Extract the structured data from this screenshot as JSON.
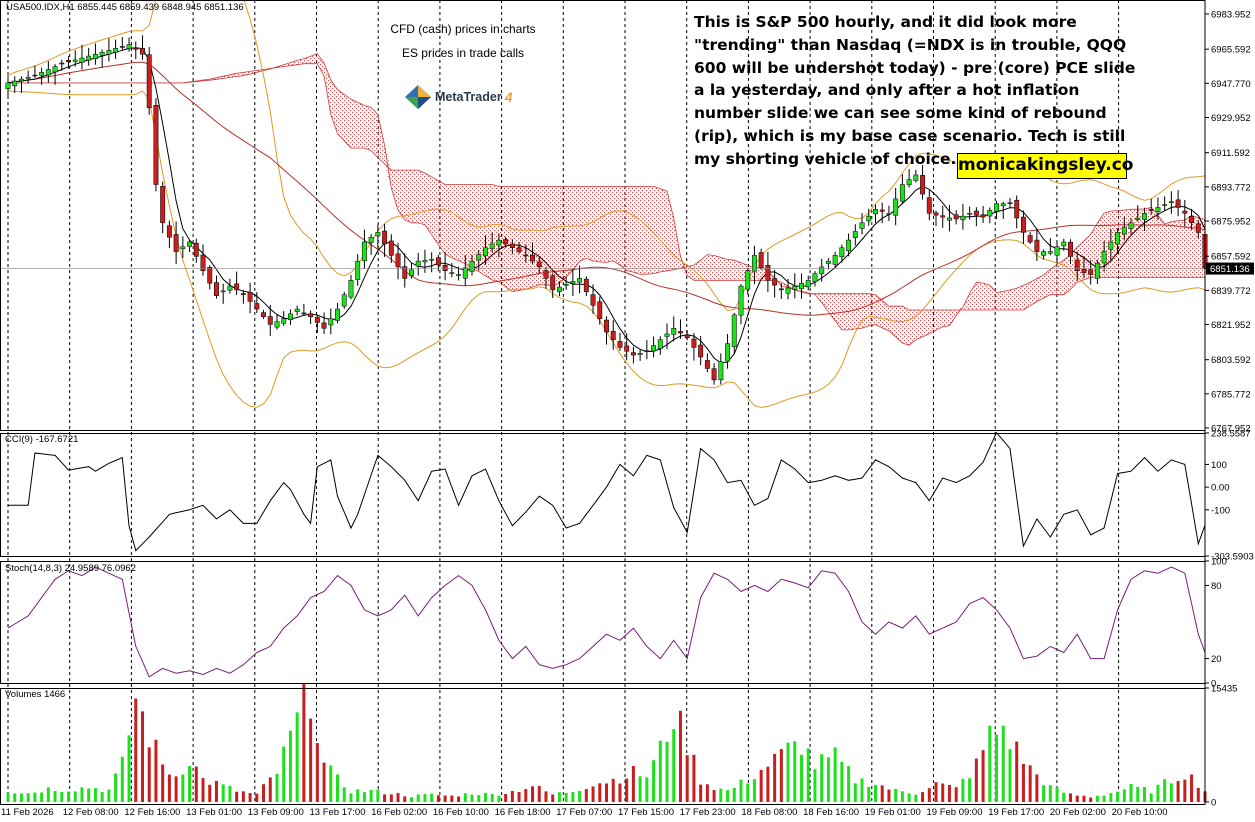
{
  "header": {
    "symbol_line": "USA500.IDX,H1  6855.445 6859.439 6848.945 6851.136"
  },
  "notes": {
    "line1": "CFD (cash) prices in charts",
    "line2": "ES prices in trade calls",
    "platform_name": "MetaTrader",
    "platform_version": "4"
  },
  "commentary": "This is S&P 500 hourly, and it did look more \"trending\" than Nasdaq (=NDX is in trouble, QQQ 600 will be undershot today) - pre (core) PCE slide a la yesterday, and only after a hot inflation number slide we can see some kind of rebound (rip), which is my base case scenario. Tech is still my shorting vehicle of choice.",
  "brand": "monicakingsley.co",
  "colors": {
    "bull": "#1ee01e",
    "bear": "#c81e1e",
    "ma_fast": "#000000",
    "ma_slow": "#b4322a",
    "bollinger": "#dc9b26",
    "cloud": "#c83c3c",
    "stoch": "#7a1c7a",
    "grid": "#000000"
  },
  "chart_data": [
    {
      "type": "candlestick",
      "title": "USA500.IDX,H1",
      "ohlc_readout": {
        "open": 6855.445,
        "high": 6859.439,
        "low": 6848.945,
        "close": 6851.136
      },
      "current_price_label": "6851.136",
      "yticks": [
        "6983.952",
        "6965.592",
        "6947.770",
        "6929.952",
        "6911.592",
        "6893.772",
        "6875.952",
        "6857.592",
        "6839.772",
        "6821.952",
        "6803.592",
        "6785.772",
        "6767.952"
      ],
      "ylim": [
        6767.952,
        6983.952
      ],
      "x_labels": [
        "11 Feb 2026",
        "12 Feb 08:00",
        "12 Feb 16:00",
        "13 Feb 01:00",
        "13 Feb 09:00",
        "13 Feb 17:00",
        "16 Feb 02:00",
        "16 Feb 10:00",
        "16 Feb 18:00",
        "17 Feb 07:00",
        "17 Feb 15:00",
        "17 Feb 23:00",
        "18 Feb 08:00",
        "18 Feb 16:00",
        "19 Feb 01:00",
        "19 Feb 09:00",
        "19 Feb 17:00",
        "20 Feb 02:00",
        "20 Feb 10:00"
      ],
      "close_path": [
        [
          0,
          6948
        ],
        [
          4,
          6952
        ],
        [
          8,
          6958
        ],
        [
          12,
          6962
        ],
        [
          16,
          6966
        ],
        [
          18,
          6968
        ],
        [
          20,
          6963
        ],
        [
          21,
          6935
        ],
        [
          22,
          6895
        ],
        [
          23,
          6875
        ],
        [
          25,
          6860
        ],
        [
          27,
          6865
        ],
        [
          29,
          6850
        ],
        [
          31,
          6837
        ],
        [
          33,
          6842
        ],
        [
          35,
          6838
        ],
        [
          37,
          6830
        ],
        [
          39,
          6822
        ],
        [
          41,
          6825
        ],
        [
          43,
          6830
        ],
        [
          45,
          6826
        ],
        [
          47,
          6820
        ],
        [
          49,
          6830
        ],
        [
          51,
          6845
        ],
        [
          53,
          6865
        ],
        [
          55,
          6870
        ],
        [
          57,
          6858
        ],
        [
          59,
          6846
        ],
        [
          61,
          6855
        ],
        [
          63,
          6856
        ],
        [
          65,
          6850
        ],
        [
          67,
          6848
        ],
        [
          69,
          6855
        ],
        [
          71,
          6862
        ],
        [
          73,
          6866
        ],
        [
          75,
          6862
        ],
        [
          77,
          6858
        ],
        [
          79,
          6852
        ],
        [
          81,
          6840
        ],
        [
          83,
          6843
        ],
        [
          85,
          6846
        ],
        [
          87,
          6832
        ],
        [
          89,
          6818
        ],
        [
          91,
          6810
        ],
        [
          93,
          6806
        ],
        [
          95,
          6808
        ],
        [
          97,
          6814
        ],
        [
          99,
          6820
        ],
        [
          101,
          6815
        ],
        [
          103,
          6805
        ],
        [
          105,
          6793
        ],
        [
          107,
          6812
        ],
        [
          109,
          6842
        ],
        [
          111,
          6858
        ],
        [
          113,
          6845
        ],
        [
          115,
          6840
        ],
        [
          117,
          6842
        ],
        [
          119,
          6845
        ],
        [
          121,
          6852
        ],
        [
          123,
          6858
        ],
        [
          125,
          6866
        ],
        [
          127,
          6875
        ],
        [
          129,
          6882
        ],
        [
          131,
          6880
        ],
        [
          133,
          6895
        ],
        [
          135,
          6900
        ],
        [
          137,
          6880
        ],
        [
          139,
          6878
        ],
        [
          141,
          6877
        ],
        [
          143,
          6880
        ],
        [
          145,
          6878
        ],
        [
          147,
          6885
        ],
        [
          149,
          6885
        ],
        [
          151,
          6870
        ],
        [
          153,
          6860
        ],
        [
          155,
          6860
        ],
        [
          157,
          6865
        ],
        [
          159,
          6850
        ],
        [
          161,
          6848
        ],
        [
          163,
          6860
        ],
        [
          165,
          6870
        ],
        [
          167,
          6875
        ],
        [
          169,
          6880
        ],
        [
          171,
          6883
        ],
        [
          173,
          6886
        ],
        [
          175,
          6880
        ],
        [
          177,
          6870
        ],
        [
          178,
          6851
        ]
      ],
      "ichimoku_cloud": "shown (red dotted hatch)",
      "moving_averages": [
        "fast MA (black)",
        "slow MA (dark red)"
      ],
      "bollinger_bands": "shown (orange)"
    },
    {
      "type": "line",
      "title": "CCI(9) -167.6721",
      "yticks": [
        "238.5587",
        "100",
        "0.00",
        "-100",
        "-303.5903"
      ],
      "ylim": [
        -303.5903,
        238.5587
      ],
      "path": [
        [
          0,
          -80
        ],
        [
          3,
          -80
        ],
        [
          4,
          150
        ],
        [
          7,
          140
        ],
        [
          9,
          75
        ],
        [
          12,
          90
        ],
        [
          13,
          70
        ],
        [
          15,
          105
        ],
        [
          17,
          130
        ],
        [
          18,
          -170
        ],
        [
          19,
          -280
        ],
        [
          21,
          -220
        ],
        [
          24,
          -120
        ],
        [
          27,
          -100
        ],
        [
          29,
          -80
        ],
        [
          31,
          -140
        ],
        [
          33,
          -100
        ],
        [
          35,
          -160
        ],
        [
          37,
          -160
        ],
        [
          39,
          -60
        ],
        [
          41,
          20
        ],
        [
          42,
          -10
        ],
        [
          44,
          -120
        ],
        [
          45,
          -160
        ],
        [
          46,
          90
        ],
        [
          48,
          120
        ],
        [
          49,
          -40
        ],
        [
          51,
          -180
        ],
        [
          52,
          -120
        ],
        [
          55,
          140
        ],
        [
          57,
          90
        ],
        [
          59,
          30
        ],
        [
          61,
          -60
        ],
        [
          63,
          70
        ],
        [
          65,
          80
        ],
        [
          67,
          -80
        ],
        [
          69,
          50
        ],
        [
          71,
          80
        ],
        [
          73,
          -60
        ],
        [
          75,
          -170
        ],
        [
          77,
          -110
        ],
        [
          79,
          -40
        ],
        [
          81,
          -80
        ],
        [
          83,
          -180
        ],
        [
          85,
          -160
        ],
        [
          87,
          -80
        ],
        [
          89,
          0
        ],
        [
          91,
          100
        ],
        [
          93,
          50
        ],
        [
          95,
          140
        ],
        [
          97,
          120
        ],
        [
          99,
          -90
        ],
        [
          101,
          -200
        ],
        [
          103,
          170
        ],
        [
          105,
          120
        ],
        [
          107,
          20
        ],
        [
          109,
          30
        ],
        [
          111,
          -80
        ],
        [
          113,
          -50
        ],
        [
          115,
          120
        ],
        [
          117,
          80
        ],
        [
          119,
          20
        ],
        [
          121,
          30
        ],
        [
          123,
          50
        ],
        [
          125,
          30
        ],
        [
          127,
          40
        ],
        [
          129,
          120
        ],
        [
          131,
          90
        ],
        [
          133,
          40
        ],
        [
          135,
          20
        ],
        [
          137,
          -60
        ],
        [
          139,
          40
        ],
        [
          141,
          20
        ],
        [
          143,
          50
        ],
        [
          145,
          110
        ],
        [
          147,
          240
        ],
        [
          149,
          170
        ],
        [
          151,
          -260
        ],
        [
          153,
          -140
        ],
        [
          155,
          -220
        ],
        [
          157,
          -120
        ],
        [
          159,
          -100
        ],
        [
          161,
          -210
        ],
        [
          163,
          -180
        ],
        [
          165,
          60
        ],
        [
          167,
          70
        ],
        [
          169,
          130
        ],
        [
          171,
          70
        ],
        [
          173,
          120
        ],
        [
          175,
          100
        ],
        [
          177,
          -250
        ],
        [
          178,
          -168
        ]
      ]
    },
    {
      "type": "line",
      "title": "Stoch(14,8,3) 24.9589 76.0962",
      "yticks": [
        "100",
        "80",
        "20",
        "0"
      ],
      "ylim": [
        0,
        100
      ],
      "path": [
        [
          0,
          45
        ],
        [
          3,
          55
        ],
        [
          5,
          70
        ],
        [
          7,
          85
        ],
        [
          9,
          92
        ],
        [
          11,
          88
        ],
        [
          13,
          95
        ],
        [
          15,
          90
        ],
        [
          17,
          85
        ],
        [
          19,
          30
        ],
        [
          21,
          5
        ],
        [
          23,
          12
        ],
        [
          25,
          8
        ],
        [
          27,
          10
        ],
        [
          29,
          7
        ],
        [
          31,
          12
        ],
        [
          33,
          8
        ],
        [
          35,
          15
        ],
        [
          37,
          25
        ],
        [
          39,
          30
        ],
        [
          41,
          45
        ],
        [
          43,
          55
        ],
        [
          45,
          70
        ],
        [
          47,
          75
        ],
        [
          49,
          88
        ],
        [
          51,
          80
        ],
        [
          53,
          60
        ],
        [
          55,
          55
        ],
        [
          57,
          60
        ],
        [
          59,
          72
        ],
        [
          61,
          55
        ],
        [
          63,
          70
        ],
        [
          65,
          80
        ],
        [
          67,
          88
        ],
        [
          69,
          80
        ],
        [
          71,
          60
        ],
        [
          73,
          35
        ],
        [
          75,
          20
        ],
        [
          77,
          30
        ],
        [
          79,
          15
        ],
        [
          81,
          12
        ],
        [
          83,
          15
        ],
        [
          85,
          20
        ],
        [
          87,
          30
        ],
        [
          89,
          40
        ],
        [
          91,
          35
        ],
        [
          93,
          45
        ],
        [
          95,
          30
        ],
        [
          97,
          20
        ],
        [
          99,
          35
        ],
        [
          101,
          20
        ],
        [
          103,
          70
        ],
        [
          105,
          90
        ],
        [
          107,
          85
        ],
        [
          109,
          75
        ],
        [
          111,
          80
        ],
        [
          113,
          75
        ],
        [
          115,
          85
        ],
        [
          117,
          82
        ],
        [
          119,
          78
        ],
        [
          121,
          92
        ],
        [
          123,
          90
        ],
        [
          125,
          75
        ],
        [
          127,
          50
        ],
        [
          129,
          40
        ],
        [
          131,
          50
        ],
        [
          133,
          45
        ],
        [
          135,
          55
        ],
        [
          137,
          40
        ],
        [
          139,
          45
        ],
        [
          141,
          50
        ],
        [
          143,
          65
        ],
        [
          145,
          70
        ],
        [
          147,
          60
        ],
        [
          149,
          45
        ],
        [
          151,
          20
        ],
        [
          153,
          22
        ],
        [
          155,
          30
        ],
        [
          157,
          25
        ],
        [
          159,
          40
        ],
        [
          161,
          20
        ],
        [
          163,
          20
        ],
        [
          165,
          60
        ],
        [
          167,
          85
        ],
        [
          169,
          92
        ],
        [
          171,
          90
        ],
        [
          173,
          95
        ],
        [
          175,
          90
        ],
        [
          177,
          40
        ],
        [
          178,
          25
        ]
      ]
    },
    {
      "type": "bar",
      "title": "Volumes 1466",
      "yticks": [
        "15435",
        "0"
      ],
      "ylim": [
        0,
        15435
      ],
      "profile": [
        [
          0,
          1500
        ],
        [
          3,
          1200
        ],
        [
          6,
          1800
        ],
        [
          9,
          1700
        ],
        [
          12,
          2000
        ],
        [
          15,
          1600
        ],
        [
          17,
          5000
        ],
        [
          19,
          14000
        ],
        [
          21,
          9000
        ],
        [
          23,
          5000
        ],
        [
          25,
          3500
        ],
        [
          27,
          6000
        ],
        [
          29,
          3000
        ],
        [
          31,
          2500
        ],
        [
          34,
          1500
        ],
        [
          37,
          1000
        ],
        [
          40,
          4000
        ],
        [
          43,
          11000
        ],
        [
          45,
          15000
        ],
        [
          47,
          5000
        ],
        [
          49,
          3000
        ],
        [
          51,
          1500
        ],
        [
          54,
          1500
        ],
        [
          57,
          1200
        ],
        [
          60,
          800
        ],
        [
          63,
          1000
        ],
        [
          66,
          800
        ],
        [
          69,
          1200
        ],
        [
          72,
          1000
        ],
        [
          75,
          1400
        ],
        [
          78,
          2200
        ],
        [
          81,
          1000
        ],
        [
          84,
          1500
        ],
        [
          87,
          2500
        ],
        [
          90,
          3000
        ],
        [
          93,
          4000
        ],
        [
          95,
          3500
        ],
        [
          97,
          7000
        ],
        [
          99,
          12000
        ],
        [
          101,
          8000
        ],
        [
          103,
          3000
        ],
        [
          105,
          2000
        ],
        [
          107,
          1500
        ],
        [
          110,
          3000
        ],
        [
          113,
          5000
        ],
        [
          116,
          7000
        ],
        [
          118,
          8000
        ],
        [
          120,
          5000
        ],
        [
          123,
          6000
        ],
        [
          126,
          3000
        ],
        [
          129,
          2500
        ],
        [
          132,
          1500
        ],
        [
          135,
          1200
        ],
        [
          138,
          2500
        ],
        [
          141,
          1800
        ],
        [
          144,
          5000
        ],
        [
          146,
          9000
        ],
        [
          148,
          10000
        ],
        [
          150,
          7000
        ],
        [
          152,
          4500
        ],
        [
          155,
          2000
        ],
        [
          158,
          1000
        ],
        [
          161,
          700
        ],
        [
          164,
          1200
        ],
        [
          167,
          2000
        ],
        [
          170,
          1500
        ],
        [
          173,
          3000
        ],
        [
          175,
          4000
        ],
        [
          177,
          2500
        ],
        [
          178,
          1466
        ]
      ]
    }
  ]
}
